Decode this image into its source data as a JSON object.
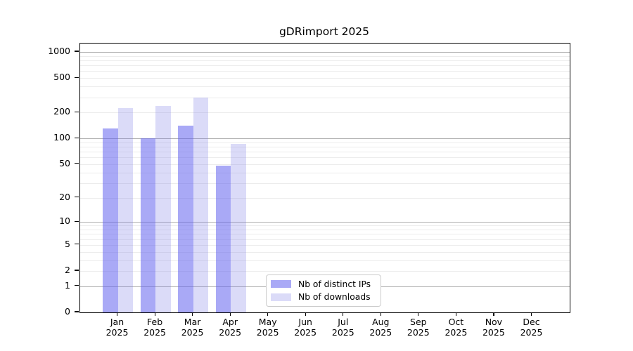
{
  "title": "gDRimport 2025",
  "legend": {
    "items": [
      {
        "label": "Nb of distinct IPs",
        "color": "#a9a9f6"
      },
      {
        "label": "Nb of downloads",
        "color": "#dbdbf8"
      }
    ]
  },
  "chart_data": {
    "type": "bar",
    "title": "gDRimport 2025",
    "categories": [
      "Jan 2025",
      "Feb 2025",
      "Mar 2025",
      "Apr 2025",
      "May 2025",
      "Jun 2025",
      "Jul 2025",
      "Aug 2025",
      "Sep 2025",
      "Oct 2025",
      "Nov 2025",
      "Dec 2025"
    ],
    "series": [
      {
        "name": "Nb of distinct IPs",
        "color_solid": "#a9a9f6",
        "color_bar": "rgba(99,99,239,0.55)",
        "values": [
          130,
          100,
          142,
          48,
          0,
          0,
          0,
          0,
          0,
          0,
          0,
          0
        ]
      },
      {
        "name": "Nb of downloads",
        "color_solid": "#dbdbf8",
        "color_bar": "rgba(111,111,227,0.25)",
        "values": [
          225,
          238,
          298,
          86,
          0,
          0,
          0,
          0,
          0,
          0,
          0,
          0
        ]
      }
    ],
    "yscale": "log10(value+1)",
    "yticks": [
      0,
      1,
      2,
      5,
      10,
      20,
      50,
      100,
      200,
      500,
      1000
    ],
    "ylim": [
      0,
      1250
    ],
    "xlabel": "",
    "ylabel": "",
    "grid": "horizontal major+minor",
    "legend_position": "lower center"
  }
}
